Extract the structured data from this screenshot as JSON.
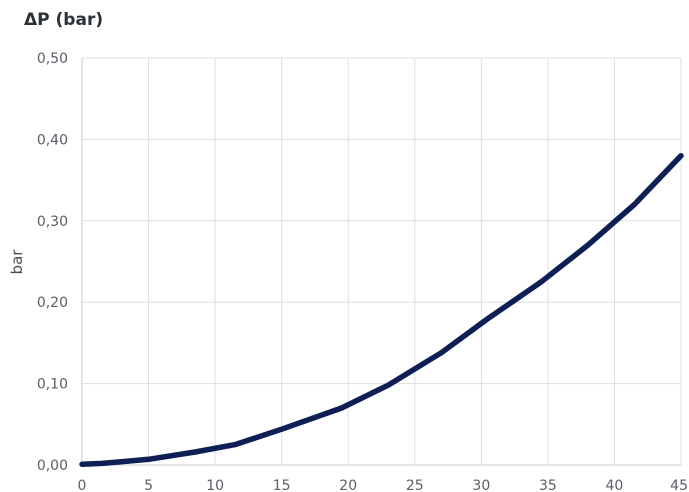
{
  "chart_data": {
    "type": "line",
    "title": "ΔP (bar)",
    "xlabel": "",
    "ylabel": "bar",
    "xlim": [
      0,
      45
    ],
    "ylim": [
      0,
      0.5
    ],
    "x_ticks": [
      0,
      5,
      10,
      15,
      20,
      25,
      30,
      35,
      40,
      45
    ],
    "x_tick_labels": [
      "0",
      "5",
      "10",
      "15",
      "20",
      "25",
      "30",
      "35",
      "40",
      "45"
    ],
    "y_ticks": [
      0,
      0.1,
      0.2,
      0.3,
      0.4,
      0.5
    ],
    "y_tick_labels": [
      "0,00",
      "0,10",
      "0,20",
      "0,30",
      "0,40",
      "0,50"
    ],
    "grid": true,
    "series": [
      {
        "color": "#0d1f55",
        "x": [
          0,
          1.5,
          5,
          8.5,
          11.5,
          15,
          19.5,
          23,
          27,
          30.5,
          34.5,
          38,
          41.5,
          45
        ],
        "values": [
          0.001,
          0.002,
          0.007,
          0.016,
          0.025,
          0.044,
          0.07,
          0.098,
          0.138,
          0.18,
          0.225,
          0.27,
          0.32,
          0.38
        ]
      }
    ]
  }
}
